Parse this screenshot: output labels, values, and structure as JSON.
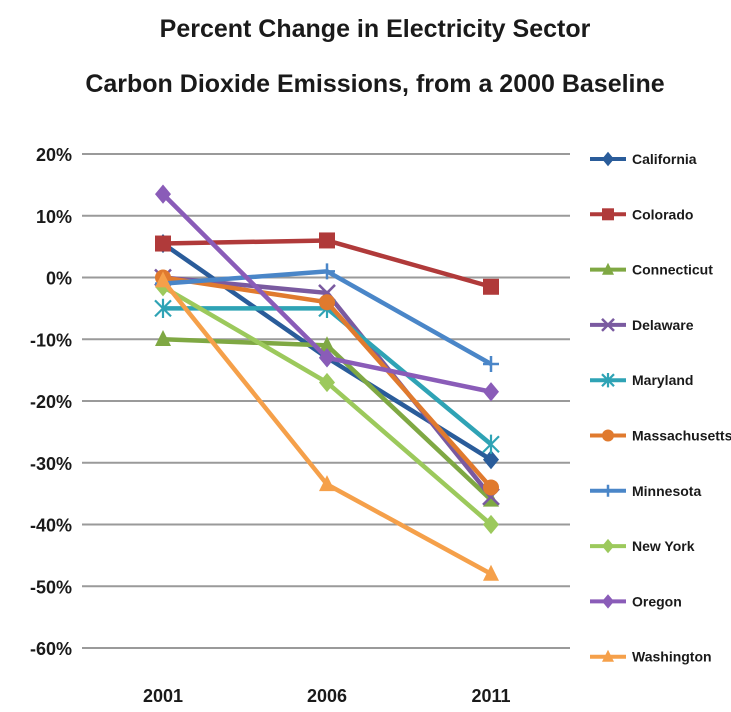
{
  "chart_data": {
    "type": "line",
    "title_lines": [
      "Percent Change in Electricity Sector",
      "Carbon Dioxide Emissions, from a 2000 Baseline"
    ],
    "xlabel": "",
    "ylabel": "",
    "categories": [
      "2001",
      "2006",
      "2011"
    ],
    "ylim": [
      -60,
      20
    ],
    "y_ticks": [
      20,
      10,
      0,
      -10,
      -20,
      -30,
      -40,
      -50,
      -60
    ],
    "y_tick_labels": [
      "20%",
      "10%",
      "0%",
      "-10%",
      "-20%",
      "-30%",
      "-40%",
      "-50%",
      "-60%"
    ],
    "grid": true,
    "legend_position": "right",
    "series": [
      {
        "name": "California",
        "color": "#2a5c9a",
        "marker": "diamond",
        "values": [
          5.5,
          -13,
          -29.5
        ]
      },
      {
        "name": "Colorado",
        "color": "#b03a3a",
        "marker": "square",
        "values": [
          5.5,
          6,
          -1.5
        ]
      },
      {
        "name": "Connecticut",
        "color": "#7fa843",
        "marker": "triangle",
        "values": [
          -10,
          -11,
          -36
        ]
      },
      {
        "name": "Delaware",
        "color": "#7a5aa0",
        "marker": "x",
        "values": [
          0,
          -2.5,
          -35.5
        ]
      },
      {
        "name": "Maryland",
        "color": "#2fa3b5",
        "marker": "star",
        "values": [
          -5,
          -5,
          -27
        ]
      },
      {
        "name": "Massachusetts",
        "color": "#e07a2e",
        "marker": "circle",
        "values": [
          0,
          -4,
          -34
        ]
      },
      {
        "name": "Minnesota",
        "color": "#4a86c8",
        "marker": "plus",
        "values": [
          -1,
          1,
          -14
        ]
      },
      {
        "name": "New York",
        "color": "#9cc95c",
        "marker": "diamond",
        "values": [
          -1.5,
          -17,
          -40
        ]
      },
      {
        "name": "Oregon",
        "color": "#8a5cb8",
        "marker": "diamond",
        "values": [
          13.5,
          -13,
          -18.5
        ]
      },
      {
        "name": "Washington",
        "color": "#f5a04a",
        "marker": "triangle",
        "values": [
          -0.5,
          -33.5,
          -48
        ]
      }
    ]
  }
}
